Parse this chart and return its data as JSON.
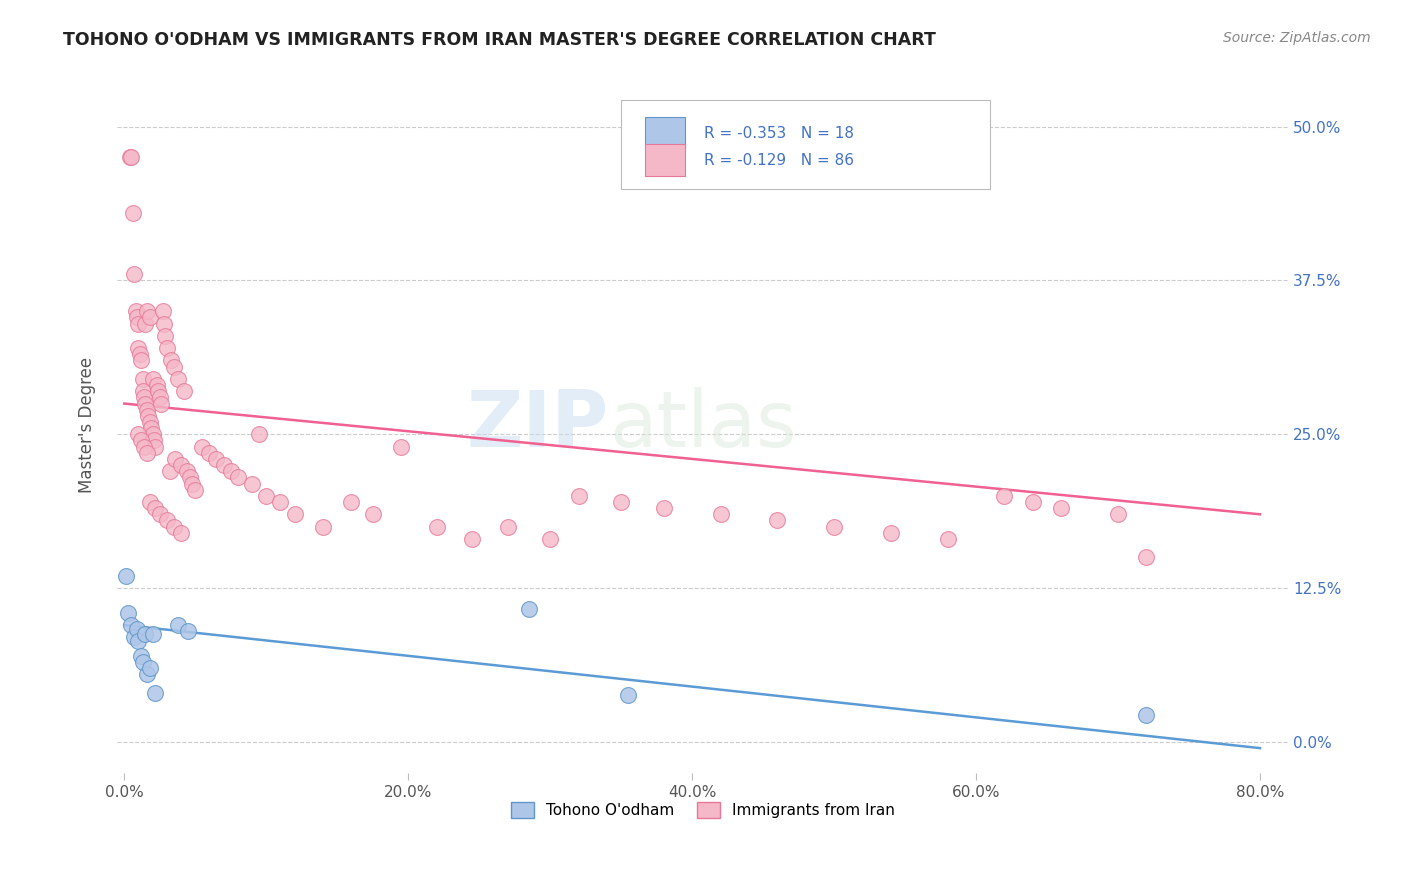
{
  "title": "TOHONO O'ODHAM VS IMMIGRANTS FROM IRAN MASTER'S DEGREE CORRELATION CHART",
  "source": "Source: ZipAtlas.com",
  "ylabel": "Master's Degree",
  "xlabel_ticks": [
    "0.0%",
    "20.0%",
    "40.0%",
    "60.0%",
    "80.0%"
  ],
  "xlabel_tick_vals": [
    0.0,
    0.2,
    0.4,
    0.6,
    0.8
  ],
  "ylabel_ticks": [
    "0.0%",
    "12.5%",
    "25.0%",
    "37.5%",
    "50.0%"
  ],
  "ylabel_tick_vals": [
    0.0,
    0.125,
    0.25,
    0.375,
    0.5
  ],
  "xlim": [
    -0.005,
    0.82
  ],
  "ylim": [
    -0.025,
    0.54
  ],
  "blue_color": "#aec6e8",
  "pink_color": "#f4b8c8",
  "blue_edge_color": "#6096c8",
  "pink_edge_color": "#e87898",
  "blue_line_color": "#5b9bd5",
  "pink_line_color": "#f06090",
  "legend_R_blue": "-0.353",
  "legend_N_blue": "18",
  "legend_R_pink": "-0.129",
  "legend_N_pink": "86",
  "legend_label_blue": "Tohono O'odham",
  "legend_label_pink": "Immigrants from Iran",
  "watermark": "ZIPatlas",
  "blue_line_x0": 0.0,
  "blue_line_y0": 0.095,
  "blue_line_x1": 0.8,
  "blue_line_y1": -0.005,
  "pink_line_x0": 0.0,
  "pink_line_y0": 0.275,
  "pink_line_x1": 0.8,
  "pink_line_y1": 0.185,
  "blue_x": [
    0.001,
    0.003,
    0.005,
    0.007,
    0.009,
    0.01,
    0.012,
    0.013,
    0.015,
    0.016,
    0.018,
    0.02,
    0.022,
    0.038,
    0.045,
    0.285,
    0.355,
    0.72
  ],
  "blue_y": [
    0.135,
    0.105,
    0.095,
    0.085,
    0.092,
    0.082,
    0.07,
    0.065,
    0.088,
    0.055,
    0.06,
    0.088,
    0.04,
    0.095,
    0.09,
    0.108,
    0.038,
    0.022
  ],
  "pink_x": [
    0.004,
    0.005,
    0.006,
    0.007,
    0.008,
    0.009,
    0.01,
    0.01,
    0.011,
    0.012,
    0.013,
    0.013,
    0.014,
    0.015,
    0.015,
    0.016,
    0.016,
    0.017,
    0.018,
    0.018,
    0.019,
    0.02,
    0.02,
    0.021,
    0.022,
    0.023,
    0.024,
    0.025,
    0.026,
    0.027,
    0.028,
    0.029,
    0.03,
    0.032,
    0.033,
    0.035,
    0.036,
    0.038,
    0.04,
    0.042,
    0.044,
    0.046,
    0.048,
    0.05,
    0.055,
    0.06,
    0.065,
    0.07,
    0.075,
    0.08,
    0.09,
    0.095,
    0.1,
    0.11,
    0.12,
    0.14,
    0.16,
    0.175,
    0.195,
    0.22,
    0.245,
    0.27,
    0.3,
    0.32,
    0.35,
    0.38,
    0.42,
    0.46,
    0.5,
    0.54,
    0.58,
    0.62,
    0.64,
    0.66,
    0.7,
    0.72,
    0.01,
    0.012,
    0.014,
    0.016,
    0.018,
    0.022,
    0.025,
    0.03,
    0.035,
    0.04
  ],
  "pink_y": [
    0.475,
    0.475,
    0.43,
    0.38,
    0.35,
    0.345,
    0.34,
    0.32,
    0.315,
    0.31,
    0.295,
    0.285,
    0.28,
    0.275,
    0.34,
    0.27,
    0.35,
    0.265,
    0.26,
    0.345,
    0.255,
    0.25,
    0.295,
    0.245,
    0.24,
    0.29,
    0.285,
    0.28,
    0.275,
    0.35,
    0.34,
    0.33,
    0.32,
    0.22,
    0.31,
    0.305,
    0.23,
    0.295,
    0.225,
    0.285,
    0.22,
    0.215,
    0.21,
    0.205,
    0.24,
    0.235,
    0.23,
    0.225,
    0.22,
    0.215,
    0.21,
    0.25,
    0.2,
    0.195,
    0.185,
    0.175,
    0.195,
    0.185,
    0.24,
    0.175,
    0.165,
    0.175,
    0.165,
    0.2,
    0.195,
    0.19,
    0.185,
    0.18,
    0.175,
    0.17,
    0.165,
    0.2,
    0.195,
    0.19,
    0.185,
    0.15,
    0.25,
    0.245,
    0.24,
    0.235,
    0.195,
    0.19,
    0.185,
    0.18,
    0.175,
    0.17
  ]
}
